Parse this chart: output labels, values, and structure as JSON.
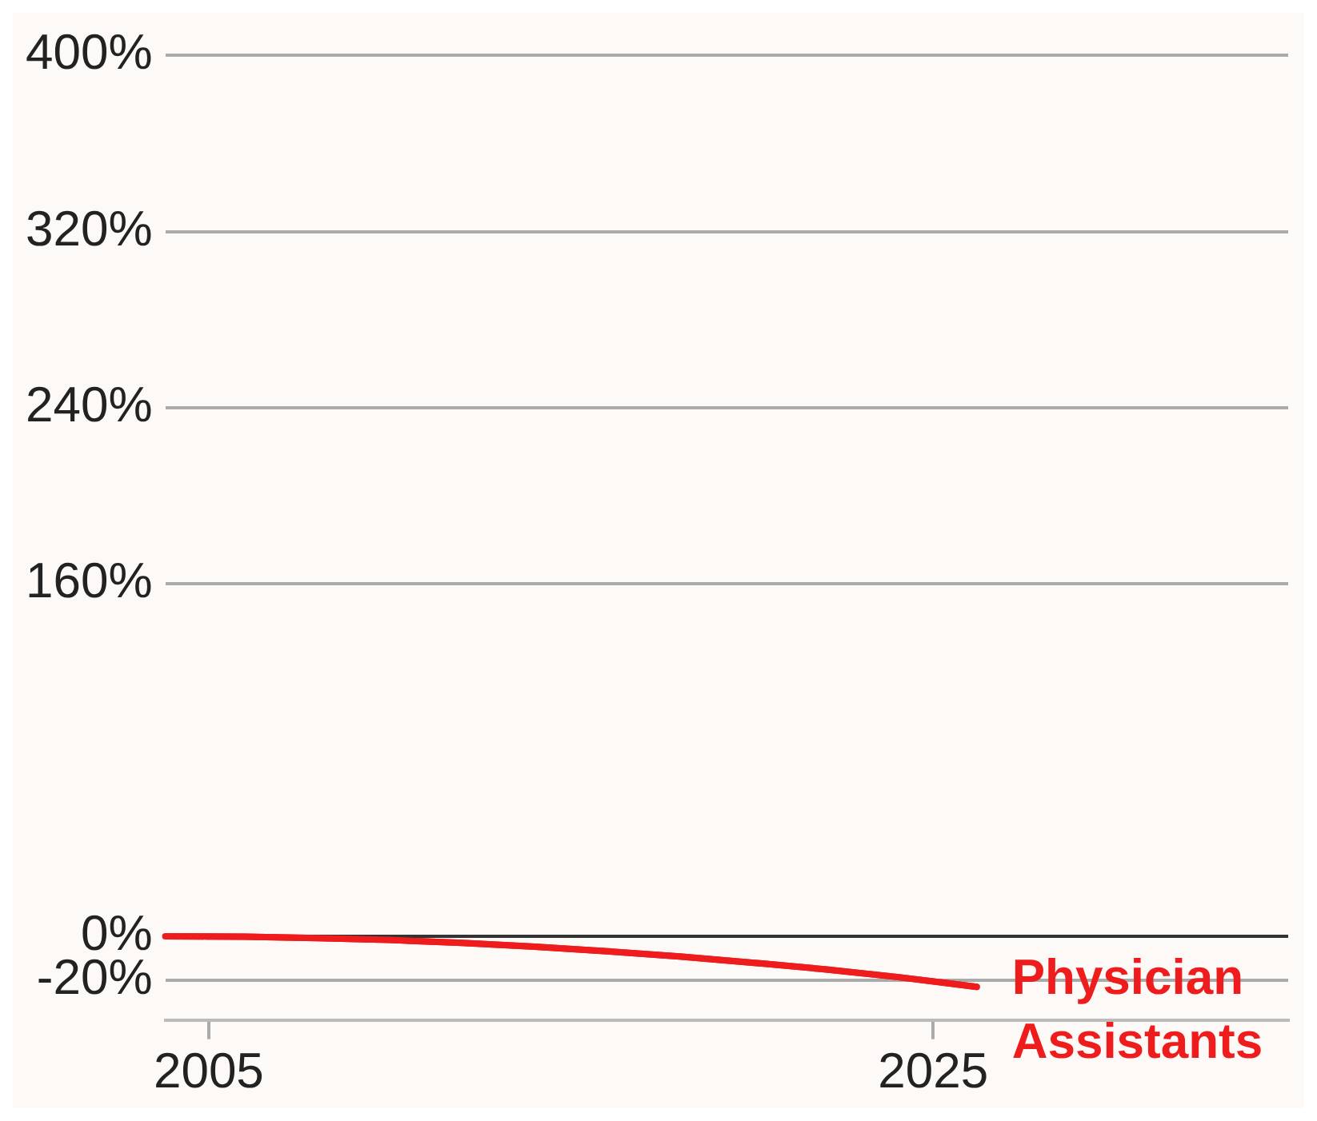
{
  "chart_data": {
    "type": "line",
    "x": [
      2003.8,
      2006,
      2008,
      2010,
      2012,
      2014,
      2016,
      2018,
      2020,
      2022,
      2024,
      2026.2
    ],
    "series": [
      {
        "name": "Physician Assistants",
        "color": "#ee1c1c",
        "values": [
          0,
          -0.2,
          -0.8,
          -1.7,
          -3,
          -4.7,
          -6.8,
          -9.2,
          -12,
          -15,
          -18.5,
          -23
        ]
      }
    ],
    "xlim": [
      2003.8,
      2034.8
    ],
    "xticks": [
      2005,
      2025
    ],
    "ylim": [
      -38,
      400
    ],
    "yticks": [
      {
        "value": -20,
        "label": "-20%"
      },
      {
        "value": 0,
        "label": "0%"
      },
      {
        "value": 160,
        "label": "160%"
      },
      {
        "value": 240,
        "label": "240%"
      },
      {
        "value": 320,
        "label": "320%"
      },
      {
        "value": 400,
        "label": "400%"
      }
    ],
    "grid": "y",
    "marker": "none",
    "line_style": "solid",
    "ref_lines": [
      {
        "axis": "y",
        "value": 0,
        "color": "#333333"
      }
    ]
  }
}
